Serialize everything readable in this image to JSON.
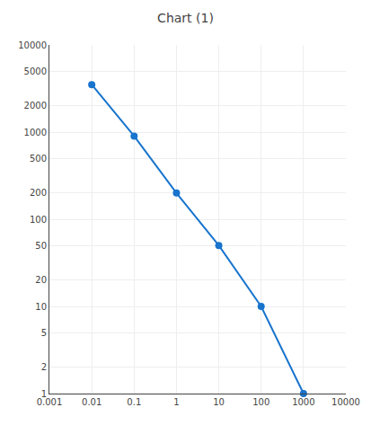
{
  "chart_data": {
    "type": "line",
    "title": "Chart (1)",
    "x": [
      0.01,
      0.1,
      1.0,
      10.0,
      100.0,
      1000.0
    ],
    "values": [
      3500,
      900,
      200,
      50,
      10,
      1
    ],
    "color": "#1874CD",
    "marker": "circle",
    "log": true,
    "xlim": [
      0.001,
      10000
    ],
    "ylim": [
      1,
      10000
    ],
    "xticks": [
      0.001,
      0.01,
      0.1,
      1,
      10,
      100,
      1000,
      10000
    ],
    "yticks": [
      1,
      2,
      5,
      10,
      20,
      50,
      100,
      200,
      500,
      1000,
      2000,
      5000,
      10000
    ],
    "grid": true
  }
}
